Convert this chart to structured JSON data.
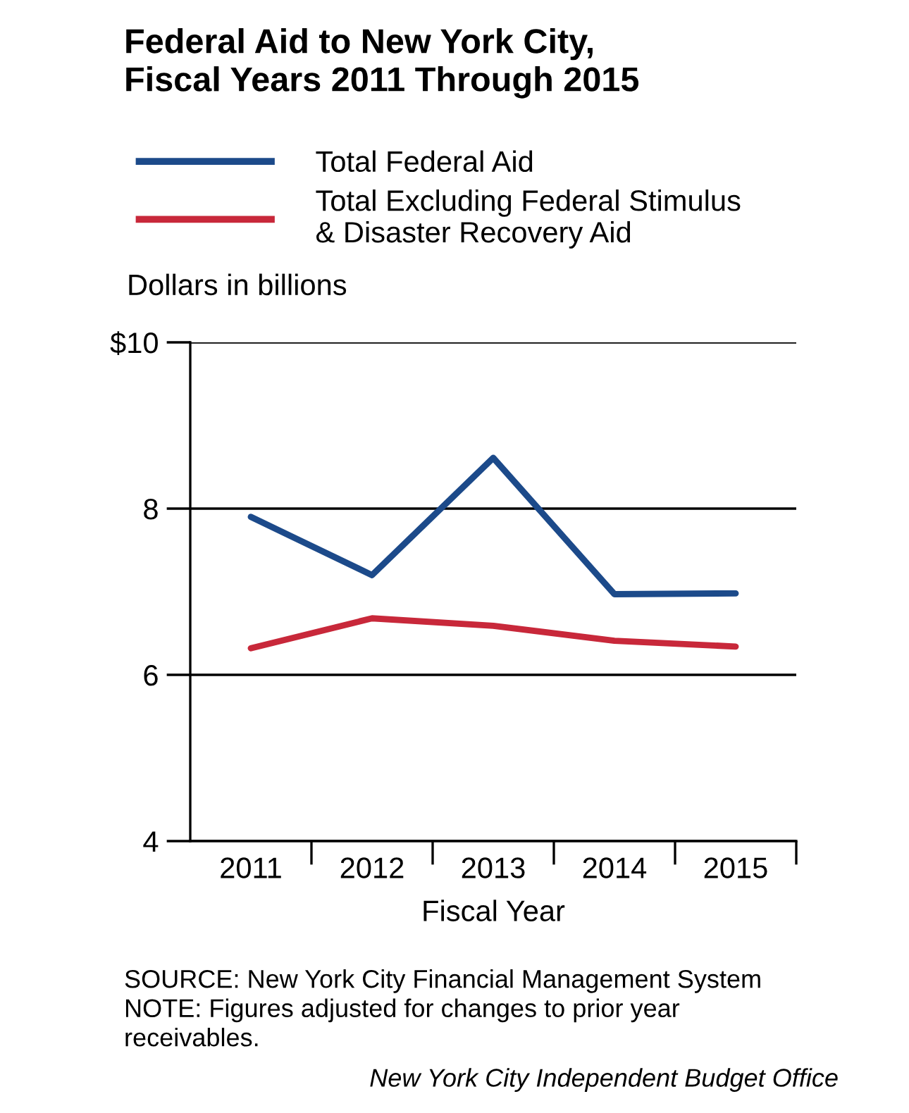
{
  "chart_data": {
    "type": "line",
    "title": "Federal Aid to New York City,\nFiscal Years 2011 Through 2015",
    "categories": [
      "2011",
      "2012",
      "2013",
      "2014",
      "2015"
    ],
    "series": [
      {
        "name": "Total Federal Aid",
        "color": "#1c4a8a",
        "values": [
          7.9,
          7.2,
          8.61,
          6.97,
          6.98
        ]
      },
      {
        "name": "Total Excluding Federal Stimulus\n& Disaster Recovery Aid",
        "color": "#c8283a",
        "values": [
          6.32,
          6.68,
          6.59,
          6.41,
          6.34
        ]
      }
    ],
    "xlabel": "Fiscal Year",
    "ylabel": "Dollars in billions",
    "ylim": [
      4,
      10
    ],
    "yticks": [
      4,
      6,
      8,
      {
        "value": 10,
        "label": "$10"
      }
    ],
    "grid": "y",
    "legend": "top",
    "marker": "none",
    "line_style": "solid",
    "annotations": [
      "SOURCE: New York City Financial Management System\nNOTE: Figures adjusted for changes to prior year\nreceivables.",
      "New York City Independent Budget Office"
    ]
  }
}
